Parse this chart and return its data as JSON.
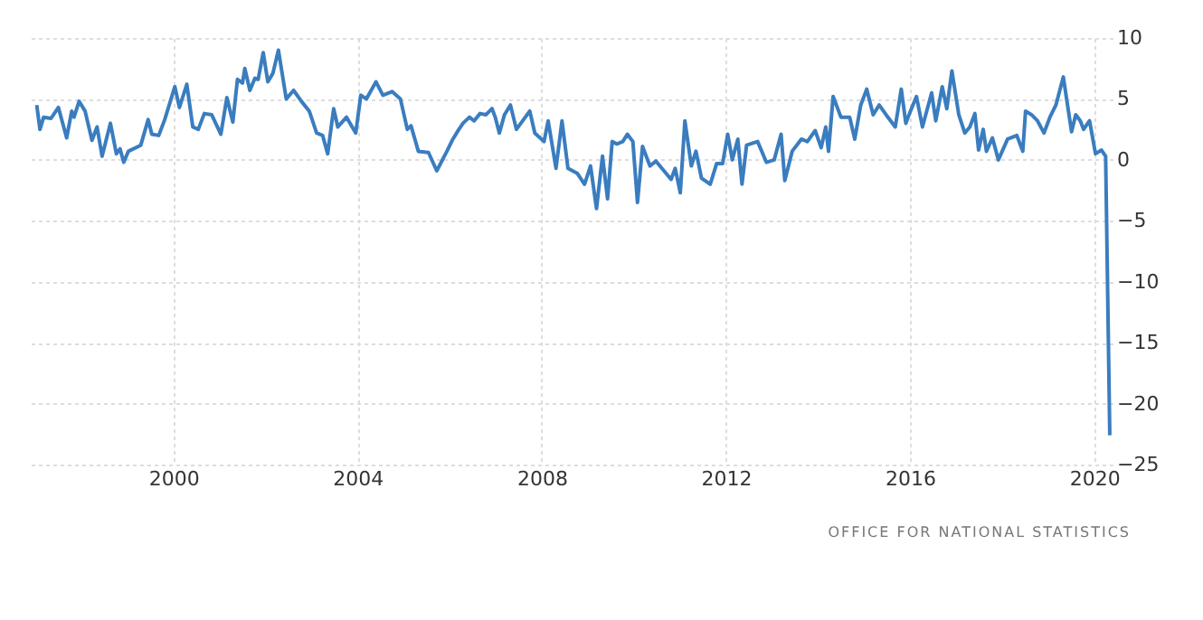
{
  "chart_data": {
    "type": "line",
    "x": [
      1997.03,
      1997.1,
      1997.18,
      1997.34,
      1997.5,
      1997.68,
      1997.79,
      1997.84,
      1997.95,
      1998.08,
      1998.23,
      1998.34,
      1998.45,
      1998.63,
      1998.76,
      1998.84,
      1998.92,
      1999.02,
      1999.29,
      1999.45,
      1999.53,
      1999.68,
      1999.81,
      2000.03,
      2000.13,
      2000.29,
      2000.42,
      2000.54,
      2000.67,
      2000.83,
      2001.03,
      2001.16,
      2001.29,
      2001.39,
      2001.5,
      2001.55,
      2001.66,
      2001.77,
      2001.84,
      2001.95,
      2002.05,
      2002.16,
      2002.28,
      2002.45,
      2002.61,
      2002.78,
      2002.95,
      2003.11,
      2003.24,
      2003.35,
      2003.48,
      2003.57,
      2003.76,
      2003.96,
      2004.07,
      2004.19,
      2004.4,
      2004.55,
      2004.75,
      2004.93,
      2005.08,
      2005.16,
      2005.32,
      2005.54,
      2005.72,
      2005.94,
      2006.07,
      2006.2,
      2006.29,
      2006.43,
      2006.53,
      2006.66,
      2006.79,
      2006.92,
      2006.99,
      2007.08,
      2007.19,
      2007.32,
      2007.45,
      2007.74,
      2007.85,
      2008.05,
      2008.14,
      2008.31,
      2008.44,
      2008.57,
      2008.77,
      2008.93,
      2009.06,
      2009.19,
      2009.32,
      2009.43,
      2009.53,
      2009.63,
      2009.76,
      2009.86,
      2009.98,
      2010.08,
      2010.19,
      2010.35,
      2010.48,
      2010.61,
      2010.81,
      2010.9,
      2011.01,
      2011.11,
      2011.25,
      2011.35,
      2011.47,
      2011.66,
      2011.8,
      2011.93,
      2012.04,
      2012.14,
      2012.26,
      2012.35,
      2012.45,
      2012.69,
      2012.88,
      2013.05,
      2013.2,
      2013.28,
      2013.44,
      2013.64,
      2013.77,
      2013.94,
      2014.07,
      2014.17,
      2014.23,
      2014.33,
      2014.5,
      2014.69,
      2014.8,
      2014.93,
      2015.06,
      2015.2,
      2015.33,
      2015.48,
      2015.68,
      2015.81,
      2015.91,
      2016.01,
      2016.14,
      2016.27,
      2016.47,
      2016.56,
      2016.7,
      2016.8,
      2016.91,
      2017.06,
      2017.19,
      2017.3,
      2017.41,
      2017.49,
      2017.59,
      2017.66,
      2017.79,
      2017.92,
      2018.12,
      2018.32,
      2018.45,
      2018.51,
      2018.64,
      2018.77,
      2018.91,
      2019.04,
      2019.17,
      2019.33,
      2019.51,
      2019.6,
      2019.7,
      2019.77,
      2019.9,
      2020.03,
      2020.16,
      2020.25,
      2020.34
    ],
    "series": [
      {
        "color": "#3a7dbf",
        "values": [
          4.5,
          2.5,
          3.5,
          3.4,
          4.3,
          1.8,
          4.0,
          3.5,
          4.8,
          4.0,
          1.6,
          2.7,
          0.3,
          3.0,
          0.5,
          0.9,
          -0.2,
          0.7,
          1.2,
          3.3,
          2.1,
          2.0,
          3.3,
          6.0,
          4.3,
          6.2,
          2.7,
          2.5,
          3.8,
          3.7,
          2.1,
          5.1,
          3.1,
          6.6,
          6.3,
          7.5,
          5.7,
          6.7,
          6.6,
          8.8,
          6.4,
          7.1,
          9.0,
          5.0,
          5.7,
          4.8,
          4.0,
          2.2,
          2.0,
          0.5,
          4.2,
          2.7,
          3.5,
          2.2,
          5.3,
          5.0,
          6.4,
          5.3,
          5.6,
          5.0,
          2.5,
          2.8,
          0.7,
          0.6,
          -0.9,
          0.7,
          1.7,
          2.5,
          3.0,
          3.5,
          3.2,
          3.8,
          3.7,
          4.2,
          3.5,
          2.2,
          3.7,
          4.5,
          2.5,
          4.0,
          2.2,
          1.5,
          3.2,
          -0.7,
          3.2,
          -0.7,
          -1.1,
          -2.0,
          -0.5,
          -4.0,
          0.3,
          -3.2,
          1.5,
          1.3,
          1.5,
          2.1,
          1.5,
          -3.5,
          1.1,
          -0.5,
          -0.1,
          -0.7,
          -1.6,
          -0.7,
          -2.7,
          3.2,
          -0.5,
          0.7,
          -1.5,
          -2.0,
          -0.3,
          -0.3,
          2.1,
          0.0,
          1.7,
          -2.0,
          1.2,
          1.5,
          -0.2,
          0.0,
          2.1,
          -1.7,
          0.7,
          1.7,
          1.5,
          2.4,
          1.0,
          2.7,
          0.7,
          5.2,
          3.5,
          3.5,
          1.7,
          4.5,
          5.8,
          3.7,
          4.5,
          3.7,
          2.7,
          5.8,
          3.0,
          4.0,
          5.2,
          2.7,
          5.5,
          3.2,
          6.0,
          4.2,
          7.3,
          3.7,
          2.2,
          2.7,
          3.8,
          0.8,
          2.5,
          0.7,
          1.8,
          0.0,
          1.7,
          2.0,
          0.7,
          4.0,
          3.7,
          3.2,
          2.2,
          3.5,
          4.5,
          6.8,
          2.3,
          3.7,
          3.2,
          2.5,
          3.2,
          0.5,
          0.8,
          0.3,
          -22.6
        ]
      }
    ],
    "xlim": [
      1996.9,
      2020.4
    ],
    "xticks": [
      2000,
      2004,
      2008,
      2012,
      2016,
      2020
    ],
    "ylim": [
      -25,
      10
    ],
    "yticks": [
      -25,
      -20,
      -15,
      -10,
      -5,
      0,
      5,
      10
    ],
    "grid": true,
    "annotations": [
      "OFFICE FOR NATIONAL STATISTICS"
    ]
  }
}
